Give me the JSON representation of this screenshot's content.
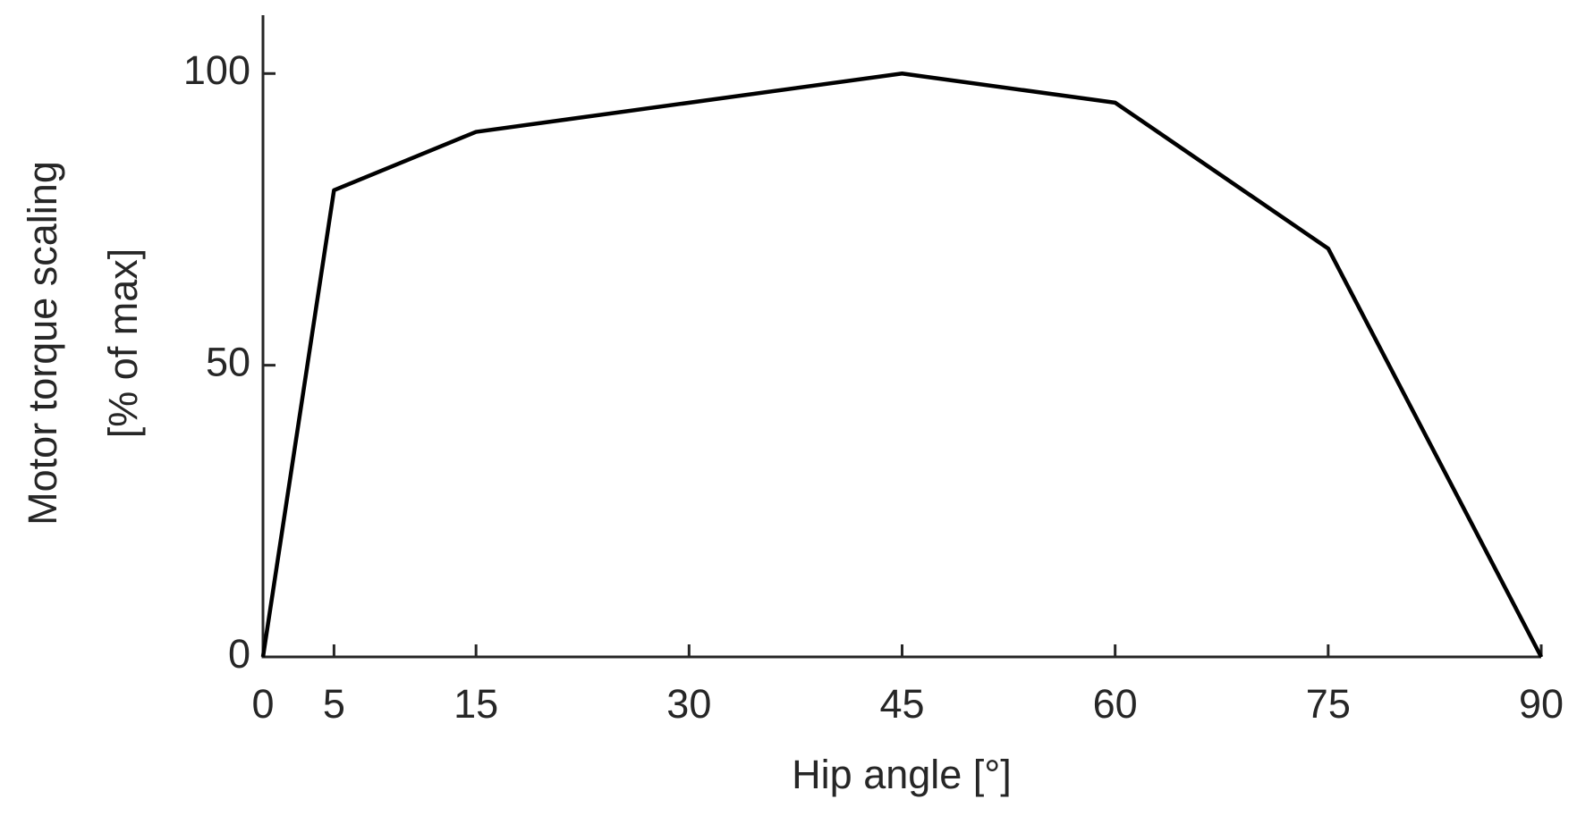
{
  "chart_data": {
    "type": "line",
    "xlabel": "Hip angle [°]",
    "ylabel": [
      "Motor torque scaling",
      "[% of max]"
    ],
    "x": [
      0,
      5,
      15,
      45,
      60,
      75,
      90
    ],
    "series": [
      {
        "color": "#000000",
        "values": [
          0,
          80,
          90,
          100,
          95,
          70,
          0
        ]
      }
    ],
    "xlim": [
      0,
      90
    ],
    "ylim": [
      0,
      110
    ],
    "xticks": [
      0,
      5,
      15,
      30,
      45,
      60,
      75,
      90
    ],
    "yticks": [
      0,
      50,
      100
    ],
    "grid": false
  }
}
